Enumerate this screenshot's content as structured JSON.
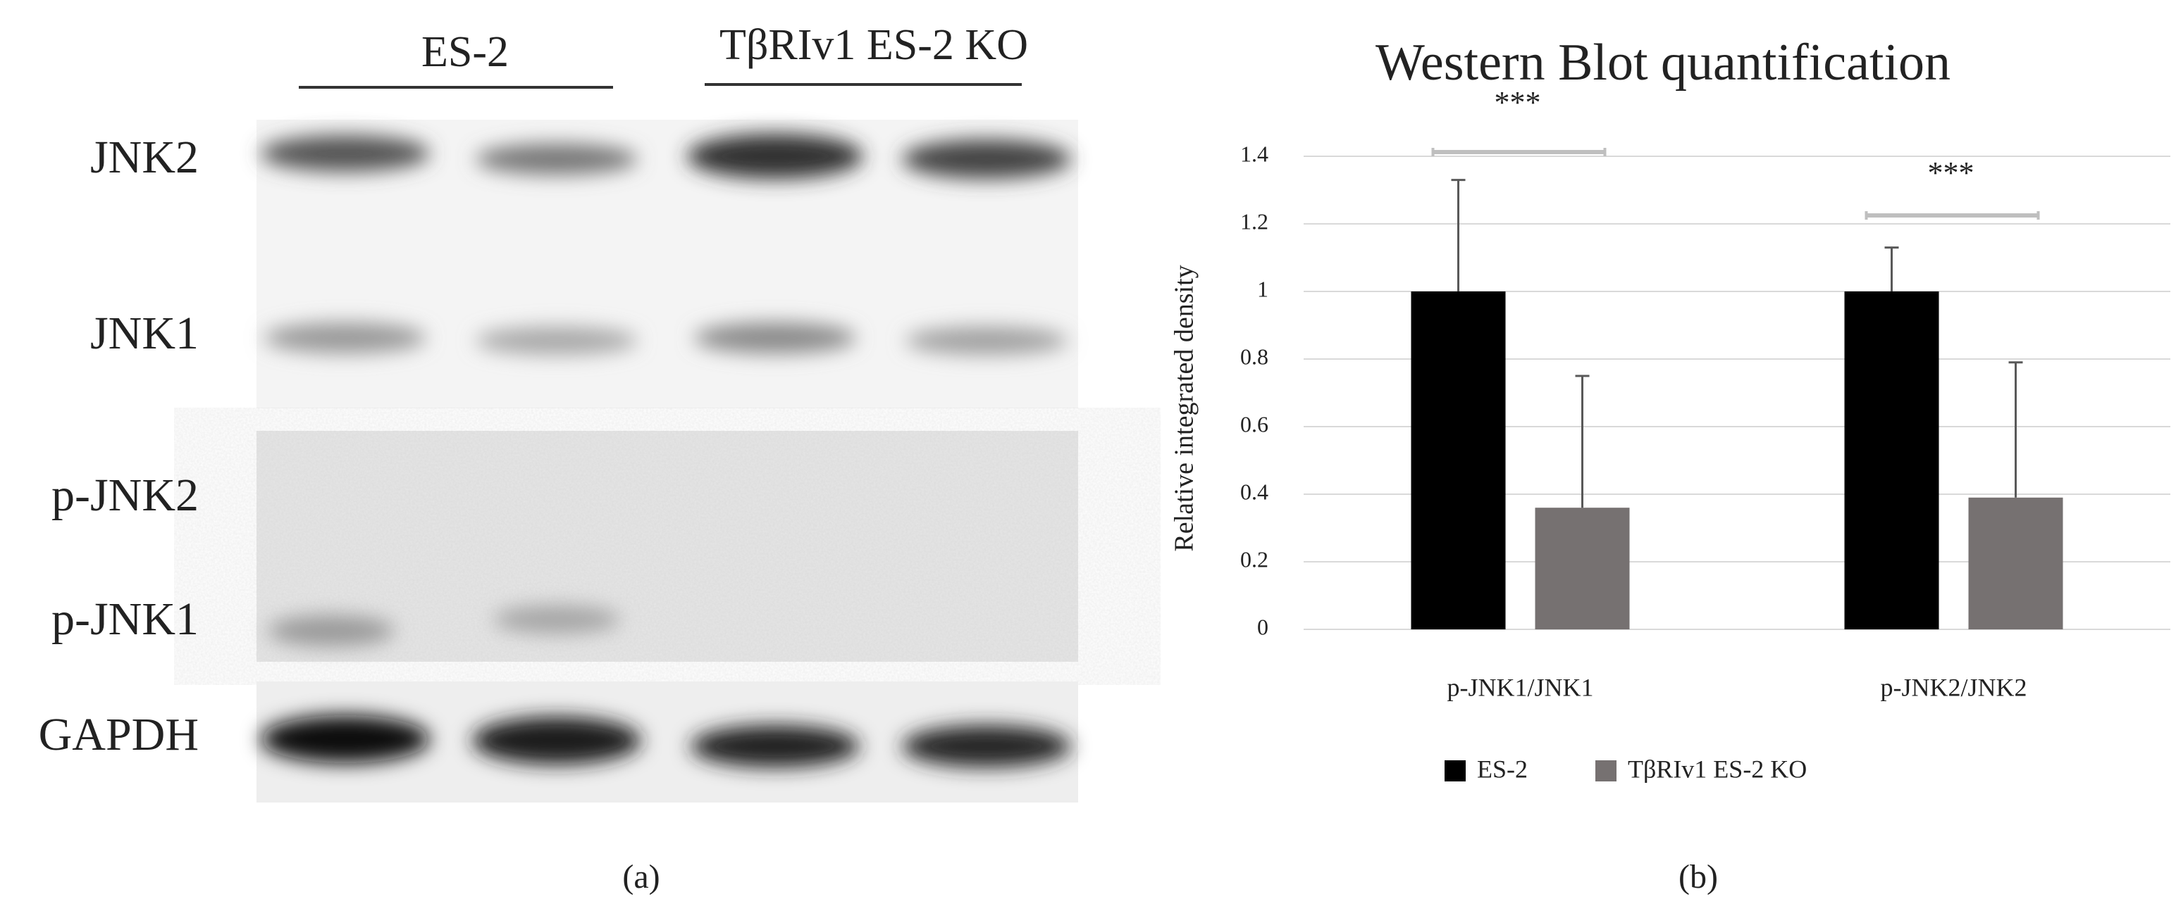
{
  "panel_a": {
    "groups": [
      "ES-2",
      "TβRIv1 ES-2 KO"
    ],
    "rows": [
      "JNK2",
      "JNK1",
      "p-JNK2",
      "p-JNK1",
      "GAPDH"
    ],
    "caption": "(a)"
  },
  "chart_data": {
    "type": "bar",
    "title": "Western Blot quantification",
    "y_label": "Relative integrated density",
    "categories": [
      "p-JNK1/JNK1",
      "p-JNK2/JNK2"
    ],
    "series": [
      {
        "name": "ES-2",
        "color": "#000000",
        "values": [
          1,
          1
        ],
        "errors": [
          0.33,
          0.13
        ]
      },
      {
        "name": "TβRIv1 ES-2 KO",
        "color": "#767171",
        "values": [
          0.36,
          0.39
        ],
        "errors": [
          0.39,
          0.4
        ]
      }
    ],
    "annotations": [
      "***",
      "***"
    ],
    "ylim": [
      0,
      1.4
    ],
    "yticks": [
      0,
      0.2,
      0.4,
      0.6,
      0.8,
      1,
      1.2,
      1.4
    ],
    "grid": true,
    "legend": "bottom",
    "caption": "(b)"
  }
}
